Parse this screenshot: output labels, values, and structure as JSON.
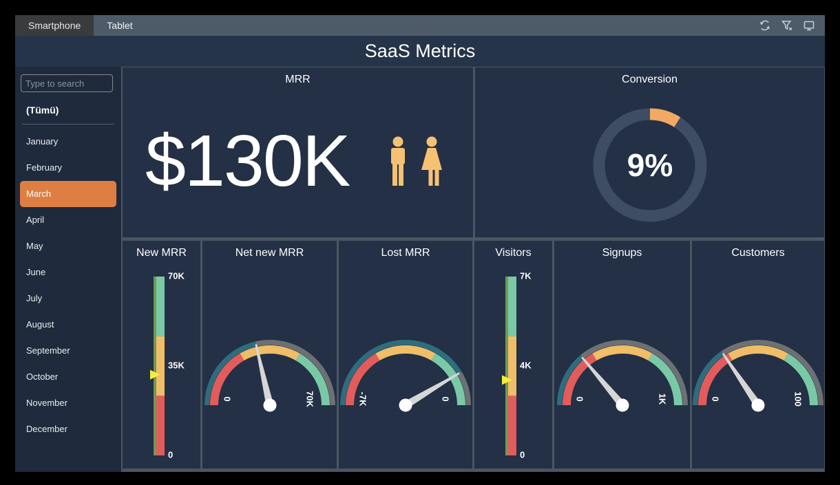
{
  "app": {
    "tabs": [
      {
        "label": "Smartphone",
        "active": true
      },
      {
        "label": "Tablet",
        "active": false
      }
    ],
    "title": "SaaS Metrics"
  },
  "toolbar": {
    "icons": [
      "refresh-icon",
      "clear-filter-icon",
      "screen-icon"
    ]
  },
  "sidebar": {
    "search_placeholder": "Type to search",
    "all_item": "(Tümü)",
    "selected_month": "March",
    "months": [
      "January",
      "February",
      "March",
      "April",
      "May",
      "June",
      "July",
      "August",
      "September",
      "October",
      "November",
      "December"
    ]
  },
  "colors": {
    "red": "#e25c5c",
    "orange": "#f0bd69",
    "green": "#79c9a7",
    "strip_green": "#6f9b52",
    "rim_filled": "#2e6d7e",
    "rim_empty": "#6d7173",
    "needle": "#d6d6d6",
    "hub": "#ffffff",
    "marker": "#f5ee3e",
    "track": "#3e4d63",
    "accent": "#f2a964",
    "highlight": "#df7e42"
  },
  "gauge_style": {
    "range_fracs": [
      0,
      0.3333,
      0.6667,
      1
    ],
    "range_color_keys": [
      "red",
      "orange",
      "green"
    ]
  },
  "chart_data": [
    {
      "id": "mrr",
      "type": "kpi",
      "title": "MRR",
      "value": "$130K",
      "icons": [
        "man-icon",
        "woman-icon"
      ]
    },
    {
      "id": "conversion",
      "type": "donut",
      "title": "Conversion",
      "percent": 9,
      "label": "9%",
      "max_percent": 100
    },
    {
      "id": "new-mrr",
      "type": "linear-gauge",
      "title": "New MRR",
      "min": 0,
      "max": 70000,
      "value": 31600,
      "tick_labels": [
        {
          "text": "70K",
          "frac": 1
        },
        {
          "text": "35K",
          "frac": 0.5
        },
        {
          "text": "0",
          "frac": 0
        }
      ]
    },
    {
      "id": "net-new-mrr",
      "type": "radial-gauge",
      "title": "Net new MRR",
      "min": 0,
      "max": 70000,
      "value": 30000,
      "start_label": "0",
      "end_label": "70K"
    },
    {
      "id": "lost-mrr",
      "type": "radial-gauge",
      "title": "Lost MRR",
      "min": -7000,
      "max": 0,
      "value": -1200,
      "start_label": "-7K",
      "end_label": "0"
    },
    {
      "id": "visitors",
      "type": "linear-gauge",
      "title": "Visitors",
      "min": 0,
      "max": 7000,
      "value": 2950,
      "tick_labels": [
        {
          "text": "7K",
          "frac": 1
        },
        {
          "text": "4K",
          "frac": 0.5
        },
        {
          "text": "0",
          "frac": 0
        }
      ]
    },
    {
      "id": "signups",
      "type": "radial-gauge",
      "title": "Signups",
      "min": 0,
      "max": 1000,
      "value": 277,
      "start_label": "0",
      "end_label": "1K"
    },
    {
      "id": "customers",
      "type": "radial-gauge",
      "title": "Customers",
      "min": 0,
      "max": 100,
      "value": 31,
      "start_label": "0",
      "end_label": "100"
    }
  ]
}
